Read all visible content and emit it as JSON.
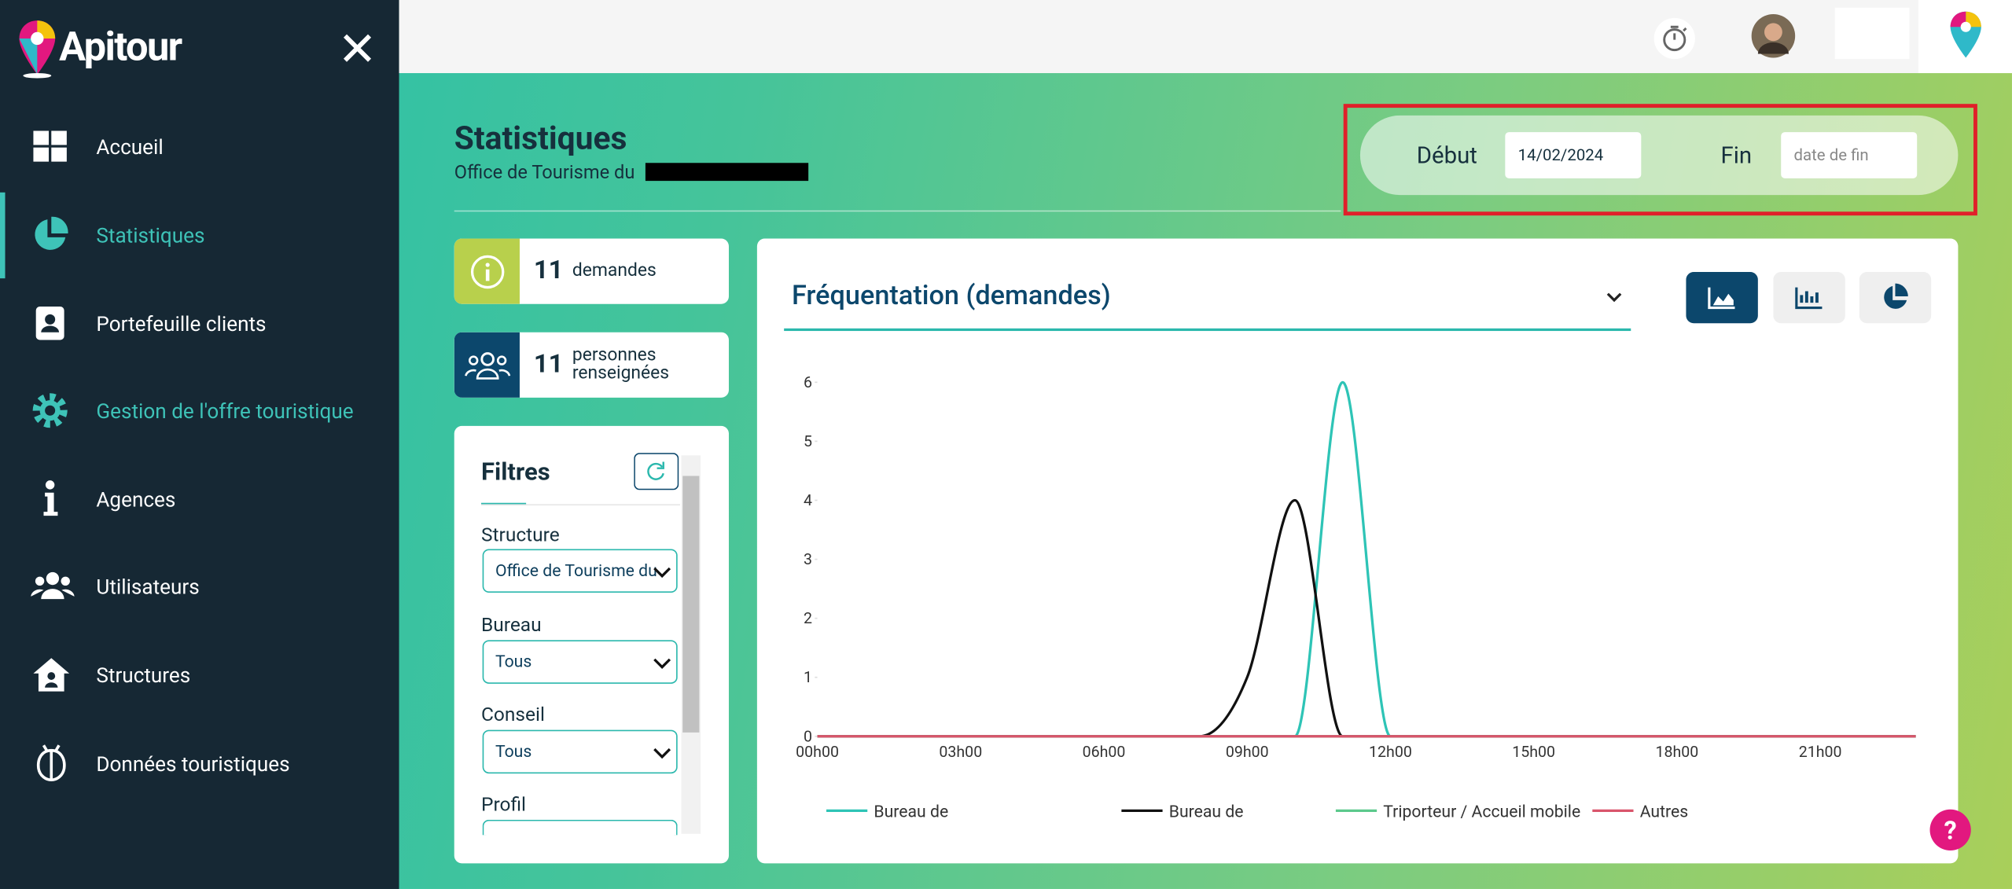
{
  "sidebar": {
    "logo": "Apitour",
    "menu": [
      {
        "label": "Accueil"
      },
      {
        "label": "Statistiques"
      },
      {
        "label": "Portefeuille clients"
      },
      {
        "label": "Gestion de l'offre touristique"
      },
      {
        "label": "Agences"
      },
      {
        "label": "Utilisateurs"
      },
      {
        "label": "Structures"
      },
      {
        "label": "Données touristiques"
      }
    ]
  },
  "header": {
    "title": "Statistiques",
    "subtitle": "Office de Tourisme du"
  },
  "date_filter": {
    "start_label": "Début",
    "start_value": "14/02/2024",
    "end_label": "Fin",
    "end_placeholder": "date de fin"
  },
  "kpis": [
    {
      "value": 11,
      "label": "demandes"
    },
    {
      "value": 11,
      "label": "personnes renseignées"
    }
  ],
  "filters": {
    "title": "Filtres",
    "fields": [
      {
        "label": "Structure",
        "value": "Office de Tourisme du"
      },
      {
        "label": "Bureau",
        "value": "Tous"
      },
      {
        "label": "Conseil",
        "value": "Tous"
      },
      {
        "label": "Profil"
      }
    ]
  },
  "chart_data": {
    "type": "line",
    "title": "Fréquentation (demandes)",
    "categories": [
      "00h00",
      null,
      null,
      "03h00",
      null,
      null,
      "06h00",
      null,
      null,
      "09h00",
      null,
      null,
      "12h00",
      null,
      null,
      "15h00",
      null,
      null,
      "18h00",
      null,
      null,
      "21h00",
      null,
      null
    ],
    "series": [
      {
        "name": "Bureau de",
        "color": "#2ec4b6",
        "values": [
          0,
          0,
          0,
          0,
          0,
          0,
          0,
          0,
          0,
          0,
          0,
          6,
          0,
          0,
          0,
          0,
          0,
          0,
          0,
          0,
          0,
          0,
          0,
          0
        ]
      },
      {
        "name": "Bureau de",
        "color": "#111111",
        "values": [
          0,
          0,
          0,
          0,
          0,
          0,
          0,
          0,
          0,
          1,
          4,
          0,
          0,
          0,
          0,
          0,
          0,
          0,
          0,
          0,
          0,
          0,
          0,
          0
        ]
      },
      {
        "name": "Triporteur / Accueil mobile",
        "color": "#5cc98c",
        "values": [
          0,
          0,
          0,
          0,
          0,
          0,
          0,
          0,
          0,
          0,
          0,
          0,
          0,
          0,
          0,
          0,
          0,
          0,
          0,
          0,
          0,
          0,
          0,
          0
        ]
      },
      {
        "name": "Autres",
        "color": "#d9546b",
        "values": [
          0,
          0,
          0,
          0,
          0,
          0,
          0,
          0,
          0,
          0,
          0,
          0,
          0,
          0,
          0,
          0,
          0,
          0,
          0,
          0,
          0,
          0,
          0,
          0
        ]
      }
    ],
    "ylim": [
      0,
      6
    ],
    "yticks": [
      0,
      1,
      2,
      3,
      4,
      5,
      6
    ],
    "legend": "bottom"
  }
}
